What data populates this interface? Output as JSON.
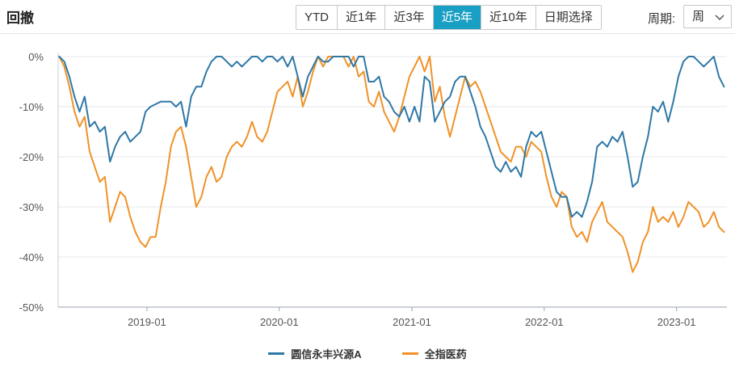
{
  "header": {
    "title": "回撤",
    "tabs": [
      "YTD",
      "近1年",
      "近3年",
      "近5年",
      "近10年",
      "日期选择"
    ],
    "active_tab": "近5年",
    "period_label": "周期:",
    "period_value": "周"
  },
  "chart_data": {
    "type": "line",
    "xlim": [
      "2018-05-01",
      "2023-05-20"
    ],
    "ylim": [
      -50,
      0
    ],
    "y_ticks": [
      0,
      -10,
      -20,
      -30,
      -40,
      -50
    ],
    "y_tick_labels": [
      "0%",
      "-10%",
      "-20%",
      "-30%",
      "-40%",
      "-50%"
    ],
    "x_ticks": [
      "2019-01-01",
      "2020-01-01",
      "2021-01-01",
      "2022-01-01",
      "2023-01-01"
    ],
    "x_tick_labels": [
      "2019-01",
      "2020-01",
      "2021-01",
      "2022-01",
      "2023-01"
    ],
    "grid": "horizontal",
    "legend_position": "bottom",
    "series": [
      {
        "name": "圆信永丰兴源A",
        "color": "#2f78a6",
        "points": [
          [
            "2018-05-04",
            0
          ],
          [
            "2018-05-18",
            -1
          ],
          [
            "2018-06-01",
            -4
          ],
          [
            "2018-06-15",
            -8
          ],
          [
            "2018-06-29",
            -11
          ],
          [
            "2018-07-13",
            -8
          ],
          [
            "2018-07-27",
            -14
          ],
          [
            "2018-08-10",
            -13
          ],
          [
            "2018-08-24",
            -15
          ],
          [
            "2018-09-07",
            -14
          ],
          [
            "2018-09-21",
            -21
          ],
          [
            "2018-10-05",
            -18
          ],
          [
            "2018-10-19",
            -16
          ],
          [
            "2018-11-02",
            -15
          ],
          [
            "2018-11-16",
            -17
          ],
          [
            "2018-11-30",
            -16
          ],
          [
            "2018-12-14",
            -15
          ],
          [
            "2018-12-28",
            -11
          ],
          [
            "2019-01-11",
            -10
          ],
          [
            "2019-01-25",
            -9.5
          ],
          [
            "2019-02-08",
            -9
          ],
          [
            "2019-02-22",
            -9
          ],
          [
            "2019-03-08",
            -9
          ],
          [
            "2019-03-22",
            -10
          ],
          [
            "2019-04-05",
            -9
          ],
          [
            "2019-04-19",
            -14
          ],
          [
            "2019-05-03",
            -8
          ],
          [
            "2019-05-17",
            -6
          ],
          [
            "2019-05-31",
            -6
          ],
          [
            "2019-06-14",
            -3
          ],
          [
            "2019-06-28",
            -1
          ],
          [
            "2019-07-12",
            0
          ],
          [
            "2019-07-26",
            0
          ],
          [
            "2019-08-09",
            -1
          ],
          [
            "2019-08-23",
            -2
          ],
          [
            "2019-09-06",
            -1
          ],
          [
            "2019-09-20",
            -2
          ],
          [
            "2019-10-04",
            -1
          ],
          [
            "2019-10-18",
            0
          ],
          [
            "2019-11-01",
            0
          ],
          [
            "2019-11-15",
            -1
          ],
          [
            "2019-11-29",
            0
          ],
          [
            "2019-12-13",
            0
          ],
          [
            "2019-12-27",
            -1
          ],
          [
            "2020-01-10",
            0
          ],
          [
            "2020-01-24",
            -2
          ],
          [
            "2020-02-07",
            0
          ],
          [
            "2020-02-21",
            -4
          ],
          [
            "2020-03-06",
            -8
          ],
          [
            "2020-03-20",
            -4
          ],
          [
            "2020-04-03",
            -2
          ],
          [
            "2020-04-17",
            0
          ],
          [
            "2020-05-01",
            -1
          ],
          [
            "2020-05-15",
            -1
          ],
          [
            "2020-05-29",
            0
          ],
          [
            "2020-06-12",
            0
          ],
          [
            "2020-06-26",
            0
          ],
          [
            "2020-07-10",
            0
          ],
          [
            "2020-07-24",
            -2
          ],
          [
            "2020-08-07",
            0
          ],
          [
            "2020-08-21",
            0
          ],
          [
            "2020-09-04",
            -5
          ],
          [
            "2020-09-18",
            -5
          ],
          [
            "2020-10-02",
            -4
          ],
          [
            "2020-10-16",
            -8
          ],
          [
            "2020-10-30",
            -9
          ],
          [
            "2020-11-13",
            -11
          ],
          [
            "2020-11-27",
            -12
          ],
          [
            "2020-12-11",
            -10
          ],
          [
            "2020-12-25",
            -13
          ],
          [
            "2021-01-08",
            -10
          ],
          [
            "2021-01-22",
            -13
          ],
          [
            "2021-02-05",
            -4
          ],
          [
            "2021-02-19",
            -5
          ],
          [
            "2021-03-05",
            -13
          ],
          [
            "2021-03-19",
            -11
          ],
          [
            "2021-04-02",
            -9
          ],
          [
            "2021-04-16",
            -8
          ],
          [
            "2021-04-30",
            -5
          ],
          [
            "2021-05-14",
            -4
          ],
          [
            "2021-05-28",
            -4
          ],
          [
            "2021-06-11",
            -7
          ],
          [
            "2021-06-25",
            -10
          ],
          [
            "2021-07-09",
            -14
          ],
          [
            "2021-07-23",
            -16
          ],
          [
            "2021-08-06",
            -19
          ],
          [
            "2021-08-20",
            -22
          ],
          [
            "2021-09-03",
            -23
          ],
          [
            "2021-09-17",
            -21
          ],
          [
            "2021-10-01",
            -23
          ],
          [
            "2021-10-15",
            -22
          ],
          [
            "2021-10-29",
            -24
          ],
          [
            "2021-11-12",
            -18
          ],
          [
            "2021-11-26",
            -15
          ],
          [
            "2021-12-10",
            -16
          ],
          [
            "2021-12-24",
            -15
          ],
          [
            "2022-01-07",
            -19
          ],
          [
            "2022-01-21",
            -23
          ],
          [
            "2022-02-04",
            -27
          ],
          [
            "2022-02-18",
            -28
          ],
          [
            "2022-03-04",
            -28
          ],
          [
            "2022-03-18",
            -32
          ],
          [
            "2022-04-01",
            -31
          ],
          [
            "2022-04-15",
            -32
          ],
          [
            "2022-04-29",
            -29
          ],
          [
            "2022-05-13",
            -25
          ],
          [
            "2022-05-27",
            -18
          ],
          [
            "2022-06-10",
            -17
          ],
          [
            "2022-06-24",
            -18
          ],
          [
            "2022-07-08",
            -16
          ],
          [
            "2022-07-22",
            -17
          ],
          [
            "2022-08-05",
            -15
          ],
          [
            "2022-08-19",
            -20
          ],
          [
            "2022-09-02",
            -26
          ],
          [
            "2022-09-16",
            -25
          ],
          [
            "2022-09-30",
            -20
          ],
          [
            "2022-10-14",
            -16
          ],
          [
            "2022-10-28",
            -10
          ],
          [
            "2022-11-11",
            -11
          ],
          [
            "2022-11-25",
            -9
          ],
          [
            "2022-12-09",
            -13
          ],
          [
            "2022-12-23",
            -9
          ],
          [
            "2023-01-06",
            -4
          ],
          [
            "2023-01-20",
            -1
          ],
          [
            "2023-02-03",
            0
          ],
          [
            "2023-02-17",
            0
          ],
          [
            "2023-03-03",
            -1
          ],
          [
            "2023-03-17",
            -2
          ],
          [
            "2023-03-31",
            -1
          ],
          [
            "2023-04-14",
            0
          ],
          [
            "2023-04-28",
            -4
          ],
          [
            "2023-05-12",
            -6
          ]
        ]
      },
      {
        "name": "全指医药",
        "color": "#f09228",
        "points": [
          [
            "2018-05-04",
            0
          ],
          [
            "2018-05-18",
            -2
          ],
          [
            "2018-06-01",
            -6
          ],
          [
            "2018-06-15",
            -11
          ],
          [
            "2018-06-29",
            -14
          ],
          [
            "2018-07-13",
            -12
          ],
          [
            "2018-07-27",
            -19
          ],
          [
            "2018-08-10",
            -22
          ],
          [
            "2018-08-24",
            -25
          ],
          [
            "2018-09-07",
            -24
          ],
          [
            "2018-09-21",
            -33
          ],
          [
            "2018-10-05",
            -30
          ],
          [
            "2018-10-19",
            -27
          ],
          [
            "2018-11-02",
            -28
          ],
          [
            "2018-11-16",
            -32
          ],
          [
            "2018-11-30",
            -35
          ],
          [
            "2018-12-14",
            -37
          ],
          [
            "2018-12-28",
            -38
          ],
          [
            "2019-01-11",
            -36
          ],
          [
            "2019-01-25",
            -36
          ],
          [
            "2019-02-08",
            -30
          ],
          [
            "2019-02-22",
            -25
          ],
          [
            "2019-03-08",
            -18
          ],
          [
            "2019-03-22",
            -15
          ],
          [
            "2019-04-05",
            -14
          ],
          [
            "2019-04-19",
            -18
          ],
          [
            "2019-05-03",
            -24
          ],
          [
            "2019-05-17",
            -30
          ],
          [
            "2019-05-31",
            -28
          ],
          [
            "2019-06-14",
            -24
          ],
          [
            "2019-06-28",
            -22
          ],
          [
            "2019-07-12",
            -25
          ],
          [
            "2019-07-26",
            -24
          ],
          [
            "2019-08-09",
            -20
          ],
          [
            "2019-08-23",
            -18
          ],
          [
            "2019-09-06",
            -17
          ],
          [
            "2019-09-20",
            -18
          ],
          [
            "2019-10-04",
            -16
          ],
          [
            "2019-10-18",
            -13
          ],
          [
            "2019-11-01",
            -16
          ],
          [
            "2019-11-15",
            -17
          ],
          [
            "2019-11-29",
            -15
          ],
          [
            "2019-12-13",
            -11
          ],
          [
            "2019-12-27",
            -7
          ],
          [
            "2020-01-10",
            -6
          ],
          [
            "2020-01-24",
            -5
          ],
          [
            "2020-02-07",
            -8
          ],
          [
            "2020-02-21",
            -4
          ],
          [
            "2020-03-06",
            -10
          ],
          [
            "2020-03-20",
            -7
          ],
          [
            "2020-04-03",
            -3
          ],
          [
            "2020-04-17",
            0
          ],
          [
            "2020-05-01",
            -2
          ],
          [
            "2020-05-15",
            0
          ],
          [
            "2020-05-29",
            0
          ],
          [
            "2020-06-12",
            0
          ],
          [
            "2020-06-26",
            0
          ],
          [
            "2020-07-10",
            -2
          ],
          [
            "2020-07-24",
            0
          ],
          [
            "2020-08-07",
            -4
          ],
          [
            "2020-08-21",
            -3
          ],
          [
            "2020-09-04",
            -9
          ],
          [
            "2020-09-18",
            -10
          ],
          [
            "2020-10-02",
            -7
          ],
          [
            "2020-10-16",
            -11
          ],
          [
            "2020-10-30",
            -13
          ],
          [
            "2020-11-13",
            -15
          ],
          [
            "2020-11-27",
            -12
          ],
          [
            "2020-12-11",
            -8
          ],
          [
            "2020-12-25",
            -4
          ],
          [
            "2021-01-08",
            -2
          ],
          [
            "2021-01-22",
            0
          ],
          [
            "2021-02-05",
            -3
          ],
          [
            "2021-02-19",
            0
          ],
          [
            "2021-03-05",
            -9
          ],
          [
            "2021-03-19",
            -6
          ],
          [
            "2021-04-02",
            -12
          ],
          [
            "2021-04-16",
            -16
          ],
          [
            "2021-04-30",
            -12
          ],
          [
            "2021-05-14",
            -8
          ],
          [
            "2021-05-28",
            -4
          ],
          [
            "2021-06-11",
            -6
          ],
          [
            "2021-06-25",
            -5
          ],
          [
            "2021-07-09",
            -7
          ],
          [
            "2021-07-23",
            -10
          ],
          [
            "2021-08-06",
            -13
          ],
          [
            "2021-08-20",
            -16
          ],
          [
            "2021-09-03",
            -19
          ],
          [
            "2021-09-17",
            -20
          ],
          [
            "2021-10-01",
            -21
          ],
          [
            "2021-10-15",
            -18
          ],
          [
            "2021-10-29",
            -18
          ],
          [
            "2021-11-12",
            -20
          ],
          [
            "2021-11-26",
            -17
          ],
          [
            "2021-12-10",
            -18
          ],
          [
            "2021-12-24",
            -19
          ],
          [
            "2022-01-07",
            -24
          ],
          [
            "2022-01-21",
            -28
          ],
          [
            "2022-02-04",
            -30
          ],
          [
            "2022-02-18",
            -27
          ],
          [
            "2022-03-04",
            -28
          ],
          [
            "2022-03-18",
            -34
          ],
          [
            "2022-04-01",
            -36
          ],
          [
            "2022-04-15",
            -35
          ],
          [
            "2022-04-29",
            -37
          ],
          [
            "2022-05-13",
            -33
          ],
          [
            "2022-05-27",
            -31
          ],
          [
            "2022-06-10",
            -29
          ],
          [
            "2022-06-24",
            -33
          ],
          [
            "2022-07-08",
            -34
          ],
          [
            "2022-07-22",
            -35
          ],
          [
            "2022-08-05",
            -36
          ],
          [
            "2022-08-19",
            -39
          ],
          [
            "2022-09-02",
            -43
          ],
          [
            "2022-09-16",
            -41
          ],
          [
            "2022-09-30",
            -37
          ],
          [
            "2022-10-14",
            -35
          ],
          [
            "2022-10-28",
            -30
          ],
          [
            "2022-11-11",
            -33
          ],
          [
            "2022-11-25",
            -32
          ],
          [
            "2022-12-09",
            -33
          ],
          [
            "2022-12-23",
            -31
          ],
          [
            "2023-01-06",
            -34
          ],
          [
            "2023-01-20",
            -32
          ],
          [
            "2023-02-03",
            -29
          ],
          [
            "2023-02-17",
            -30
          ],
          [
            "2023-03-03",
            -31
          ],
          [
            "2023-03-17",
            -34
          ],
          [
            "2023-03-31",
            -33
          ],
          [
            "2023-04-14",
            -31
          ],
          [
            "2023-04-28",
            -34
          ],
          [
            "2023-05-12",
            -35
          ]
        ]
      }
    ]
  }
}
